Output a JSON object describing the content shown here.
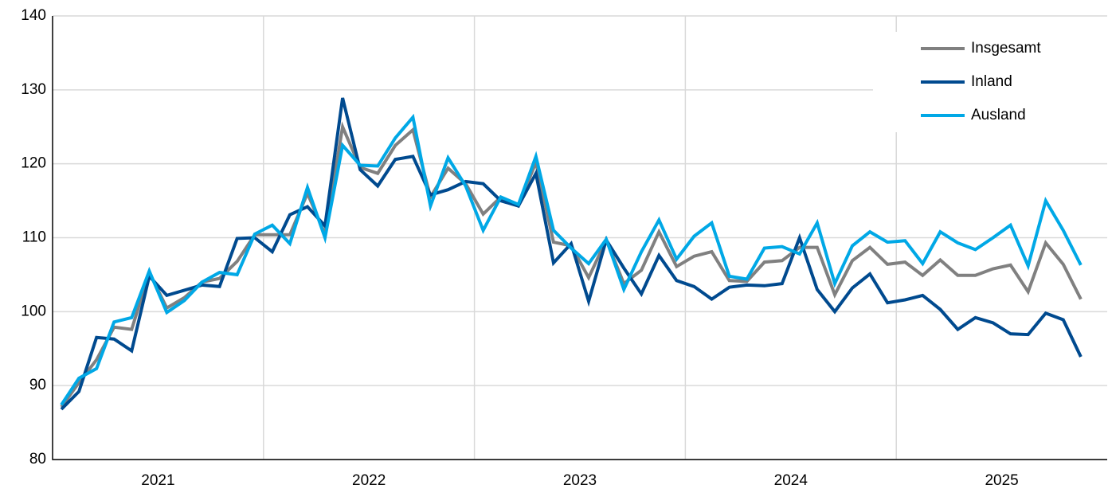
{
  "chart_data": {
    "type": "line",
    "categories": [
      "2021",
      null,
      null,
      null,
      null,
      null,
      null,
      null,
      null,
      null,
      null,
      null,
      "2022",
      null,
      null,
      null,
      null,
      null,
      null,
      null,
      null,
      null,
      null,
      null,
      "2023",
      null,
      null,
      null,
      null,
      null,
      null,
      null,
      null,
      null,
      null,
      null,
      "2024",
      null,
      null,
      null,
      null,
      null,
      null,
      null,
      null,
      null,
      null,
      null,
      "2025",
      null,
      null,
      null,
      null,
      null,
      null,
      null,
      null,
      null,
      null
    ],
    "series": [
      {
        "name": "Insgesamt",
        "color": "#808080",
        "values": [
          87.1,
          90.4,
          93.5,
          97.9,
          97.6,
          105.3,
          100.5,
          101.9,
          104.0,
          104.5,
          106.8,
          110.4,
          110.4,
          110.4,
          116.0,
          110.5,
          125.0,
          119.5,
          118.7,
          122.5,
          124.6,
          115.5,
          119.4,
          117.3,
          113.2,
          115.5,
          114.3,
          120.2,
          109.4,
          108.9,
          104.6,
          109.7,
          103.8,
          105.6,
          110.8,
          106.1,
          107.5,
          108.1,
          104.2,
          104.1,
          106.7,
          106.9,
          108.7,
          108.7,
          102.3,
          106.9,
          108.7,
          106.4,
          106.7,
          104.9,
          107.0,
          104.9,
          104.9,
          105.8,
          106.3,
          102.7,
          109.3,
          106.4,
          101.7
        ]
      },
      {
        "name": "Inland",
        "color": "#004a8f",
        "values": [
          86.8,
          89.2,
          96.5,
          96.3,
          94.7,
          104.8,
          102.2,
          102.9,
          103.6,
          103.4,
          109.9,
          110.0,
          108.1,
          113.1,
          114.2,
          111.6,
          128.9,
          119.2,
          117.0,
          120.6,
          121.0,
          115.8,
          116.5,
          117.6,
          117.3,
          115.0,
          114.3,
          118.7,
          106.6,
          109.2,
          101.4,
          109.7,
          105.9,
          102.4,
          107.6,
          104.2,
          103.4,
          101.7,
          103.3,
          103.6,
          103.5,
          103.8,
          110.0,
          103.0,
          100.0,
          103.2,
          105.1,
          101.2,
          101.6,
          102.2,
          100.3,
          97.6,
          99.2,
          98.5,
          97.0,
          96.9,
          99.8,
          98.9,
          93.9
        ]
      },
      {
        "name": "Ausland",
        "color": "#00a8e6",
        "values": [
          87.4,
          91.0,
          92.3,
          98.6,
          99.2,
          105.5,
          99.9,
          101.5,
          104.0,
          105.3,
          105.0,
          110.5,
          111.7,
          109.2,
          116.8,
          110.0,
          122.5,
          119.8,
          119.7,
          123.5,
          126.3,
          114.3,
          120.8,
          117.0,
          111.0,
          115.5,
          114.5,
          121.0,
          111.0,
          108.6,
          106.5,
          109.8,
          103.0,
          108.1,
          112.4,
          107.1,
          110.2,
          112.0,
          104.8,
          104.4,
          108.6,
          108.8,
          107.8,
          112.0,
          103.8,
          108.9,
          110.8,
          109.4,
          109.6,
          106.5,
          110.8,
          109.3,
          108.4,
          110.0,
          111.7,
          106.2,
          115.0,
          111.0,
          106.3
        ]
      }
    ],
    "ylim": [
      80,
      140
    ],
    "yticks": [
      80,
      90,
      100,
      110,
      120,
      130,
      140
    ],
    "grid": true,
    "legend": "top-right"
  }
}
